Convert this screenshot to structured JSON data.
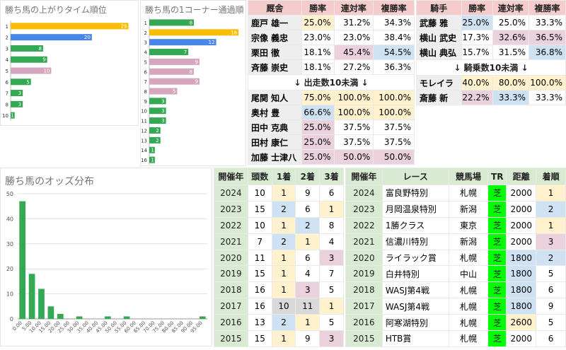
{
  "panels": {
    "agari": {
      "title": "勝ち馬の上がりタイム順位"
    },
    "corner": {
      "title": "勝ち馬の1コーナー通過順"
    },
    "odds": {
      "title": "勝ち馬のオッズ分布"
    }
  },
  "chart_data": [
    {
      "type": "bar",
      "orientation": "horizontal",
      "title": "勝ち馬の上がりタイム順位",
      "categories": [
        "1",
        "2",
        "3",
        "4",
        "5",
        "6",
        "7",
        "8",
        "10"
      ],
      "values": [
        29,
        20,
        8,
        9,
        10,
        5,
        3,
        3,
        1
      ],
      "bar_colors": [
        "#fbbc04",
        "#4a86e8",
        "#34a853",
        "#34a853",
        "#d5a6bd",
        "#34a853",
        "#34a853",
        "#34a853",
        "#34a853"
      ],
      "xlim": [
        0,
        31
      ]
    },
    {
      "type": "bar",
      "orientation": "horizontal",
      "title": "勝ち馬の1コーナー通過順",
      "categories": [
        "1",
        "2",
        "3",
        "4",
        "5",
        "6",
        "7",
        "8",
        "9",
        "10",
        "11",
        "12",
        "13",
        "14",
        "16"
      ],
      "values": [
        8,
        16,
        12,
        7,
        9,
        8,
        9,
        5,
        3,
        3,
        3,
        2,
        2,
        1,
        1
      ],
      "bar_colors": [
        "#34a853",
        "#fbbc04",
        "#4a86e8",
        "#34a853",
        "#d5a6bd",
        "#d5a6bd",
        "#d5a6bd",
        "#d5a6bd",
        "#34a853",
        "#34a853",
        "#34a853",
        "#34a853",
        "#34a853",
        "#34a853",
        "#34a853"
      ],
      "xlim": [
        0,
        17
      ]
    },
    {
      "type": "bar",
      "title": "勝ち馬のオッズ分布",
      "categories": [
        "0.00",
        "5.00",
        "10.00",
        "15.00",
        "20.00",
        "25.00",
        "30.00",
        "35.00",
        "40.00",
        "45.00",
        "50.00",
        "55.00",
        "60.00",
        "65.00",
        "70.00",
        "75.00",
        "80.00",
        "85.00",
        "90.00",
        "95.00"
      ],
      "values": [
        47,
        18,
        12,
        5,
        2,
        0,
        1,
        0,
        0,
        1,
        0,
        1,
        0,
        0,
        0,
        0,
        0,
        0,
        0,
        1
      ],
      "ylim": [
        0,
        50
      ],
      "yticks": [
        0,
        10,
        20,
        30,
        40,
        50
      ],
      "bar_color": "#34a853"
    }
  ],
  "jockey_left": {
    "headers": [
      "厩舎",
      "勝率",
      "連対率",
      "複勝率"
    ],
    "rows": [
      {
        "name": "鹿戸 雄一",
        "w": "25.0%",
        "p": "31.2%",
        "s": "34.3%",
        "c": [
          "yellow",
          "",
          ""
        ]
      },
      {
        "name": "宗像 義忠",
        "w": "23.0%",
        "p": "23.0%",
        "s": "38.4%",
        "c": [
          "",
          "",
          ""
        ]
      },
      {
        "name": "栗田 徹",
        "w": "18.1%",
        "p": "45.4%",
        "s": "54.5%",
        "c": [
          "",
          "pink",
          "blue"
        ]
      },
      {
        "name": "斉藤 崇史",
        "w": "18.1%",
        "p": "27.2%",
        "s": "36.3%",
        "c": [
          "",
          "",
          ""
        ]
      }
    ],
    "note": "↓ 出走数10未満 ↓",
    "rows2": [
      {
        "name": "尾関 知人",
        "w": "75.0%",
        "p": "100.0%",
        "s": "100.0%",
        "c": [
          "yellow",
          "yellow",
          "yellow"
        ]
      },
      {
        "name": "奥村 豊",
        "w": "66.6%",
        "p": "100.0%",
        "s": "100.0%",
        "c": [
          "blue",
          "yellow",
          "yellow"
        ]
      },
      {
        "name": "田中 克典",
        "w": "25.0%",
        "p": "37.5%",
        "s": "37.5%",
        "c": [
          "pink",
          "",
          ""
        ]
      },
      {
        "name": "田村 康仁",
        "w": "25.0%",
        "p": "37.5%",
        "s": "37.5%",
        "c": [
          "pink",
          "",
          ""
        ]
      },
      {
        "name": "加藤 士津八",
        "w": "25.0%",
        "p": "50.0%",
        "s": "50.0%",
        "c": [
          "pink",
          "pink",
          "pink"
        ]
      }
    ]
  },
  "jockey_right": {
    "headers": [
      "騎手",
      "勝率",
      "連対率",
      "複勝率"
    ],
    "rows": [
      {
        "name": "武藤 雅",
        "w": "25.0%",
        "p": "25.0%",
        "s": "33.3%",
        "c": [
          "blue",
          "",
          ""
        ]
      },
      {
        "name": "横山 武史",
        "w": "17.3%",
        "p": "32.6%",
        "s": "36.5%",
        "c": [
          "",
          "pink",
          "pink"
        ]
      },
      {
        "name": "横山 典弘",
        "w": "15.7%",
        "p": "31.5%",
        "s": "36.8%",
        "c": [
          "",
          "",
          "blue"
        ]
      }
    ],
    "note": "↓ 騎乗数10未満 ↓",
    "rows2": [
      {
        "name": "モレイラ",
        "w": "40.0%",
        "p": "80.0%",
        "s": "100.0%",
        "c": [
          "yellow",
          "yellow",
          "yellow"
        ]
      },
      {
        "name": "斎藤 新",
        "w": "22.2%",
        "p": "33.3%",
        "s": "33.3%",
        "c": [
          "pink",
          "blue",
          ""
        ]
      }
    ]
  },
  "results": {
    "headers": [
      "開催年",
      "頭数",
      "1着",
      "2着",
      "3着"
    ],
    "rows": [
      {
        "y": "2024",
        "n": "10",
        "a": "1",
        "b": "9",
        "c": "6",
        "cls": [
          "yellow",
          "",
          ""
        ]
      },
      {
        "y": "2023",
        "n": "15",
        "a": "2",
        "b": "6",
        "c": "1",
        "cls": [
          "blue",
          "",
          "yellow"
        ]
      },
      {
        "y": "2022",
        "n": "10",
        "a": "1",
        "b": "2",
        "c": "8",
        "cls": [
          "yellow",
          "blue",
          ""
        ]
      },
      {
        "y": "2021",
        "n": "7",
        "a": "2",
        "b": "1",
        "c": "4",
        "cls": [
          "blue",
          "yellow",
          ""
        ]
      },
      {
        "y": "2020",
        "n": "11",
        "a": "1",
        "b": "6",
        "c": "3",
        "cls": [
          "yellow",
          "",
          "pink"
        ]
      },
      {
        "y": "2019",
        "n": "15",
        "a": "1",
        "b": "4",
        "c": "7",
        "cls": [
          "yellow",
          "",
          ""
        ]
      },
      {
        "y": "2018",
        "n": "16",
        "a": "1",
        "b": "3",
        "c": "5",
        "cls": [
          "yellow",
          "pink",
          ""
        ]
      },
      {
        "y": "2017",
        "n": "16",
        "a": "10",
        "b": "11",
        "c": "1",
        "cls": [
          "grey",
          "grey",
          "yellow"
        ]
      },
      {
        "y": "2016",
        "n": "13",
        "a": "2",
        "b": "1",
        "c": "5",
        "cls": [
          "blue",
          "yellow",
          ""
        ]
      },
      {
        "y": "2015",
        "n": "15",
        "a": "1",
        "b": "9",
        "c": "3",
        "cls": [
          "yellow",
          "",
          "pink"
        ]
      }
    ]
  },
  "races": {
    "headers": [
      "開催年",
      "レース",
      "競馬場",
      "TR",
      "距離",
      "着順"
    ],
    "rows": [
      {
        "y": "2024",
        "race": "富良野特別",
        "track": "札幌",
        "tr": "芝",
        "dist": "2000",
        "pos": "1",
        "dc": "",
        "pc": "yellow"
      },
      {
        "y": "2023",
        "race": "月岡温泉特別",
        "track": "新潟",
        "tr": "芝",
        "dist": "2000",
        "pos": "2",
        "dc": "",
        "pc": "blue"
      },
      {
        "y": "2022",
        "race": "1勝クラス",
        "track": "東京",
        "tr": "芝",
        "dist": "2000",
        "pos": "1",
        "dc": "",
        "pc": "yellow"
      },
      {
        "y": "2021",
        "race": "信濃川特別",
        "track": "新潟",
        "tr": "芝",
        "dist": "2000",
        "pos": "3",
        "dc": "",
        "pc": "pink"
      },
      {
        "y": "2020",
        "race": "ライラック賞",
        "track": "札幌",
        "tr": "芝",
        "dist": "1800",
        "pos": "2",
        "dc": "blue",
        "pc": "blue"
      },
      {
        "y": "2019",
        "race": "白井特別",
        "track": "中山",
        "tr": "芝",
        "dist": "1800",
        "pos": "5",
        "dc": "blue",
        "pc": ""
      },
      {
        "y": "2018",
        "race": "WASJ第4戦",
        "track": "札幌",
        "tr": "芝",
        "dist": "1800",
        "pos": "6",
        "dc": "blue",
        "pc": ""
      },
      {
        "y": "2017",
        "race": "WASJ第4戦",
        "track": "札幌",
        "tr": "芝",
        "dist": "1800",
        "pos": "9",
        "dc": "blue",
        "pc": ""
      },
      {
        "y": "2016",
        "race": "阿寒湖特別",
        "track": "札幌",
        "tr": "芝",
        "dist": "2600",
        "pos": "5",
        "dc": "yellow",
        "pc": ""
      },
      {
        "y": "2015",
        "race": "HTB賞",
        "track": "札幌",
        "tr": "芝",
        "dist": "2000",
        "pos": "6",
        "dc": "",
        "pc": ""
      }
    ]
  }
}
